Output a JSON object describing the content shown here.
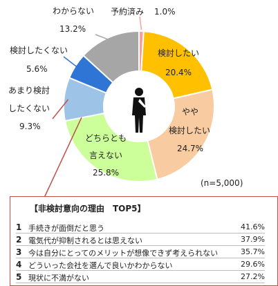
{
  "chart_data": {
    "type": "pie",
    "donut": true,
    "sample_note": "(n=5,000)",
    "slices": [
      {
        "label": "予約済み",
        "value": 1.0,
        "display": "1.0%",
        "color": "#f4a0a0"
      },
      {
        "label": "検討したい",
        "value": 20.4,
        "display": "20.4%",
        "color": "#ffc000"
      },
      {
        "label": "やや検討したい",
        "value": 24.7,
        "display": "24.7%",
        "color": "#f8cba0"
      },
      {
        "label": "どちらとも言えない",
        "value": 25.8,
        "display": "25.8%",
        "color": "#ccff99"
      },
      {
        "label": "あまり検討したくない",
        "value": 9.3,
        "display": "9.3%",
        "color": "#9dc3e6"
      },
      {
        "label": "検討したくない",
        "value": 5.6,
        "display": "5.6%",
        "color": "#2e75d6"
      },
      {
        "label": "わからない",
        "value": 13.2,
        "display": "13.2%",
        "color": "#a6a6a6"
      }
    ]
  },
  "labels": {
    "reserved_name": "予約済み",
    "reserved_pct": "1.0%",
    "consider_name": "検討したい",
    "consider_pct": "20.4%",
    "somewhat_line1": "やや",
    "somewhat_line2": "検討したい",
    "somewhat_pct": "24.7%",
    "neutral_line1": "どちらとも",
    "neutral_line2": "言えない",
    "neutral_pct": "25.8%",
    "notmuch_line1": "あまり検討",
    "notmuch_line2": "したくない",
    "notmuch_pct": "9.3%",
    "no_name": "検討したくない",
    "no_pct": "5.6%",
    "unknown_name": "わからない",
    "unknown_pct": "13.2%"
  },
  "panel": {
    "title": "【非検討意向の理由　TOP5】",
    "rows": [
      {
        "rank": "1",
        "text": "手続きが面倒だと思う",
        "pct": "41.6%"
      },
      {
        "rank": "2",
        "text": "電気代が抑制されるとは思えない",
        "pct": "37.9%"
      },
      {
        "rank": "3",
        "text": "今は自分にとってのメリットが想像できず考えられない",
        "pct": "35.7%"
      },
      {
        "rank": "4",
        "text": "どういった会社を選んで良いかわからない",
        "pct": "29.6%"
      },
      {
        "rank": "5",
        "text": "現状に不満がない",
        "pct": "27.2%"
      }
    ]
  },
  "colors": {
    "panel_border": "#c0504d",
    "person_icon": "#111111"
  }
}
